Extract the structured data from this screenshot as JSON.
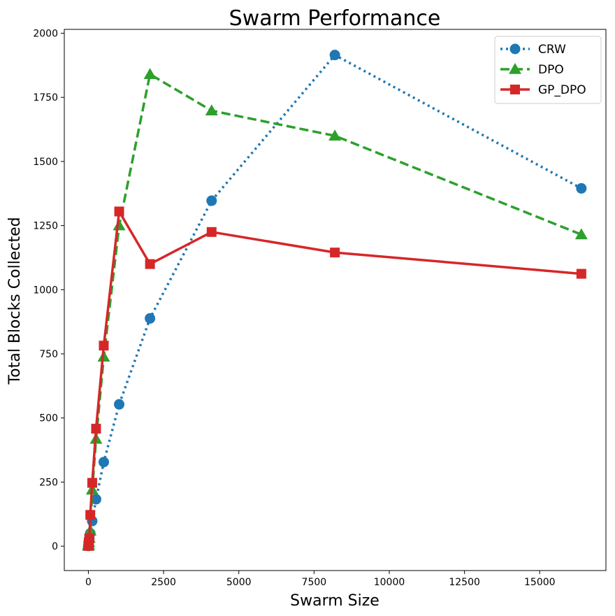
{
  "chart_data": {
    "type": "line",
    "title": "Swarm Performance",
    "xlabel": "Swarm Size",
    "ylabel": "Total Blocks Collected",
    "xlim": [
      -800,
      17200
    ],
    "ylim": [
      -95,
      2015
    ],
    "xticks": [
      0,
      2500,
      5000,
      7500,
      10000,
      12500,
      15000
    ],
    "yticks": [
      0,
      250,
      500,
      750,
      1000,
      1250,
      1500,
      1750,
      2000
    ],
    "legend_position": "top-right",
    "series": [
      {
        "name": "CRW",
        "color": "#1f77b4",
        "linestyle": "dotted",
        "marker": "circle",
        "x": [
          1,
          2,
          4,
          8,
          16,
          32,
          64,
          128,
          256,
          512,
          1024,
          2048,
          4096,
          8192,
          16384
        ],
        "y": [
          1,
          2,
          4,
          8,
          15,
          30,
          50,
          98,
          183,
          328,
          553,
          888,
          1347,
          1915,
          1395
        ]
      },
      {
        "name": "DPO",
        "color": "#2ca02c",
        "linestyle": "dashed",
        "marker": "triangle",
        "x": [
          1,
          2,
          4,
          8,
          16,
          32,
          64,
          128,
          256,
          512,
          1024,
          2048,
          4096,
          8192,
          16384
        ],
        "y": [
          1,
          2,
          4,
          8,
          16,
          32,
          60,
          220,
          418,
          738,
          1250,
          1840,
          1698,
          1600,
          1215
        ]
      },
      {
        "name": "GP_DPO",
        "color": "#d62728",
        "linestyle": "solid",
        "marker": "square",
        "x": [
          1,
          2,
          4,
          8,
          16,
          32,
          64,
          128,
          256,
          512,
          1024,
          2048,
          4096,
          8192,
          16384
        ],
        "y": [
          1,
          2,
          4,
          8,
          16,
          31,
          122,
          247,
          458,
          782,
          1305,
          1100,
          1225,
          1145,
          1062
        ]
      }
    ]
  }
}
